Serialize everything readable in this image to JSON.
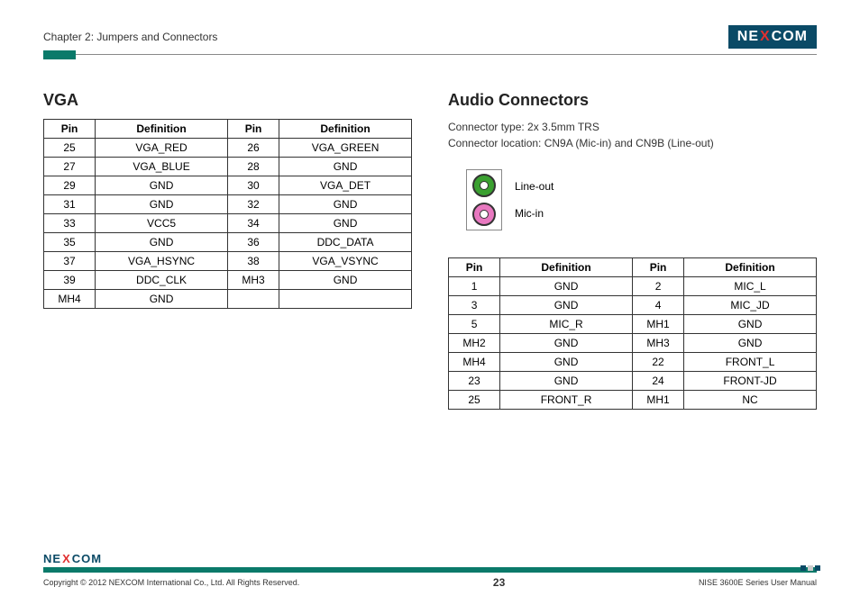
{
  "header": {
    "chapter": "Chapter 2: Jumpers and Connectors",
    "logo_pre": "NE",
    "logo_x": "X",
    "logo_post": "COM"
  },
  "vga": {
    "title": "VGA",
    "cols": [
      "Pin",
      "Definition",
      "Pin",
      "Definition"
    ],
    "rows": [
      [
        "25",
        "VGA_RED",
        "26",
        "VGA_GREEN"
      ],
      [
        "27",
        "VGA_BLUE",
        "28",
        "GND"
      ],
      [
        "29",
        "GND",
        "30",
        "VGA_DET"
      ],
      [
        "31",
        "GND",
        "32",
        "GND"
      ],
      [
        "33",
        "VCC5",
        "34",
        "GND"
      ],
      [
        "35",
        "GND",
        "36",
        "DDC_DATA"
      ],
      [
        "37",
        "VGA_HSYNC",
        "38",
        "VGA_VSYNC"
      ],
      [
        "39",
        "DDC_CLK",
        "MH3",
        "GND"
      ],
      [
        "MH4",
        "GND",
        "",
        ""
      ]
    ]
  },
  "audio": {
    "title": "Audio Connectors",
    "sub1": "Connector type: 2x 3.5mm TRS",
    "sub2": "Connector location: CN9A (Mic-in) and CN9B (Line-out)",
    "jack1": "Line-out",
    "jack2": "Mic-in",
    "cols": [
      "Pin",
      "Definition",
      "Pin",
      "Definition"
    ],
    "rows": [
      [
        "1",
        "GND",
        "2",
        "MIC_L"
      ],
      [
        "3",
        "GND",
        "4",
        "MIC_JD"
      ],
      [
        "5",
        "MIC_R",
        "MH1",
        "GND"
      ],
      [
        "MH2",
        "GND",
        "MH3",
        "GND"
      ],
      [
        "MH4",
        "GND",
        "22",
        "FRONT_L"
      ],
      [
        "23",
        "GND",
        "24",
        "FRONT-JD"
      ],
      [
        "25",
        "FRONT_R",
        "MH1",
        "NC"
      ]
    ]
  },
  "footer": {
    "logo_pre": "NE",
    "logo_x": "X",
    "logo_post": "COM",
    "copyright": "Copyright © 2012 NEXCOM International Co., Ltd. All Rights Reserved.",
    "page": "23",
    "manual": "NISE 3600E Series User Manual"
  },
  "colors": {
    "teal": "#0a7a6a",
    "navy": "#0a4a66",
    "green": "#3aa030",
    "pink": "#e878c0"
  }
}
